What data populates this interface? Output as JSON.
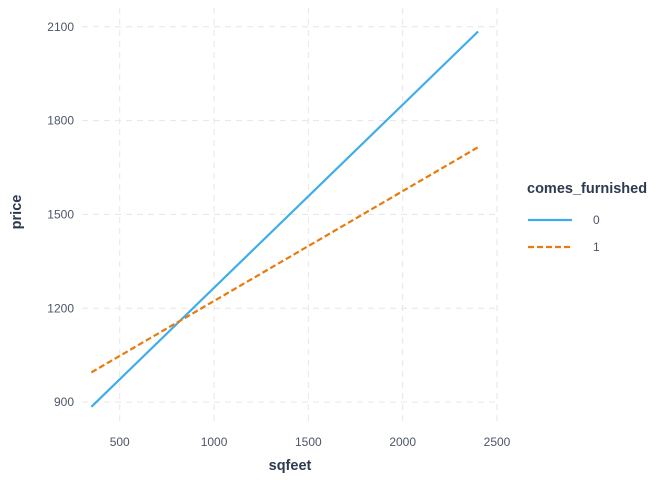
{
  "chart_data": {
    "type": "line",
    "xlabel": "sqfeet",
    "ylabel": "price",
    "xlim": [
      300,
      2500
    ],
    "ylim": [
      830,
      2160
    ],
    "x_ticks": [
      500,
      1000,
      1500,
      2000,
      2500
    ],
    "y_ticks": [
      900,
      1200,
      1500,
      1800,
      2100
    ],
    "grid": true,
    "legend": {
      "title": "comes_furnished",
      "position": "right"
    },
    "series": [
      {
        "name": "0",
        "color": "#40acea",
        "dash": "solid",
        "points": [
          [
            350,
            885
          ],
          [
            2400,
            2085
          ]
        ]
      },
      {
        "name": "1",
        "color": "#e87a0e",
        "dash": "dashed",
        "points": [
          [
            350,
            995
          ],
          [
            2400,
            1715
          ]
        ]
      }
    ]
  }
}
